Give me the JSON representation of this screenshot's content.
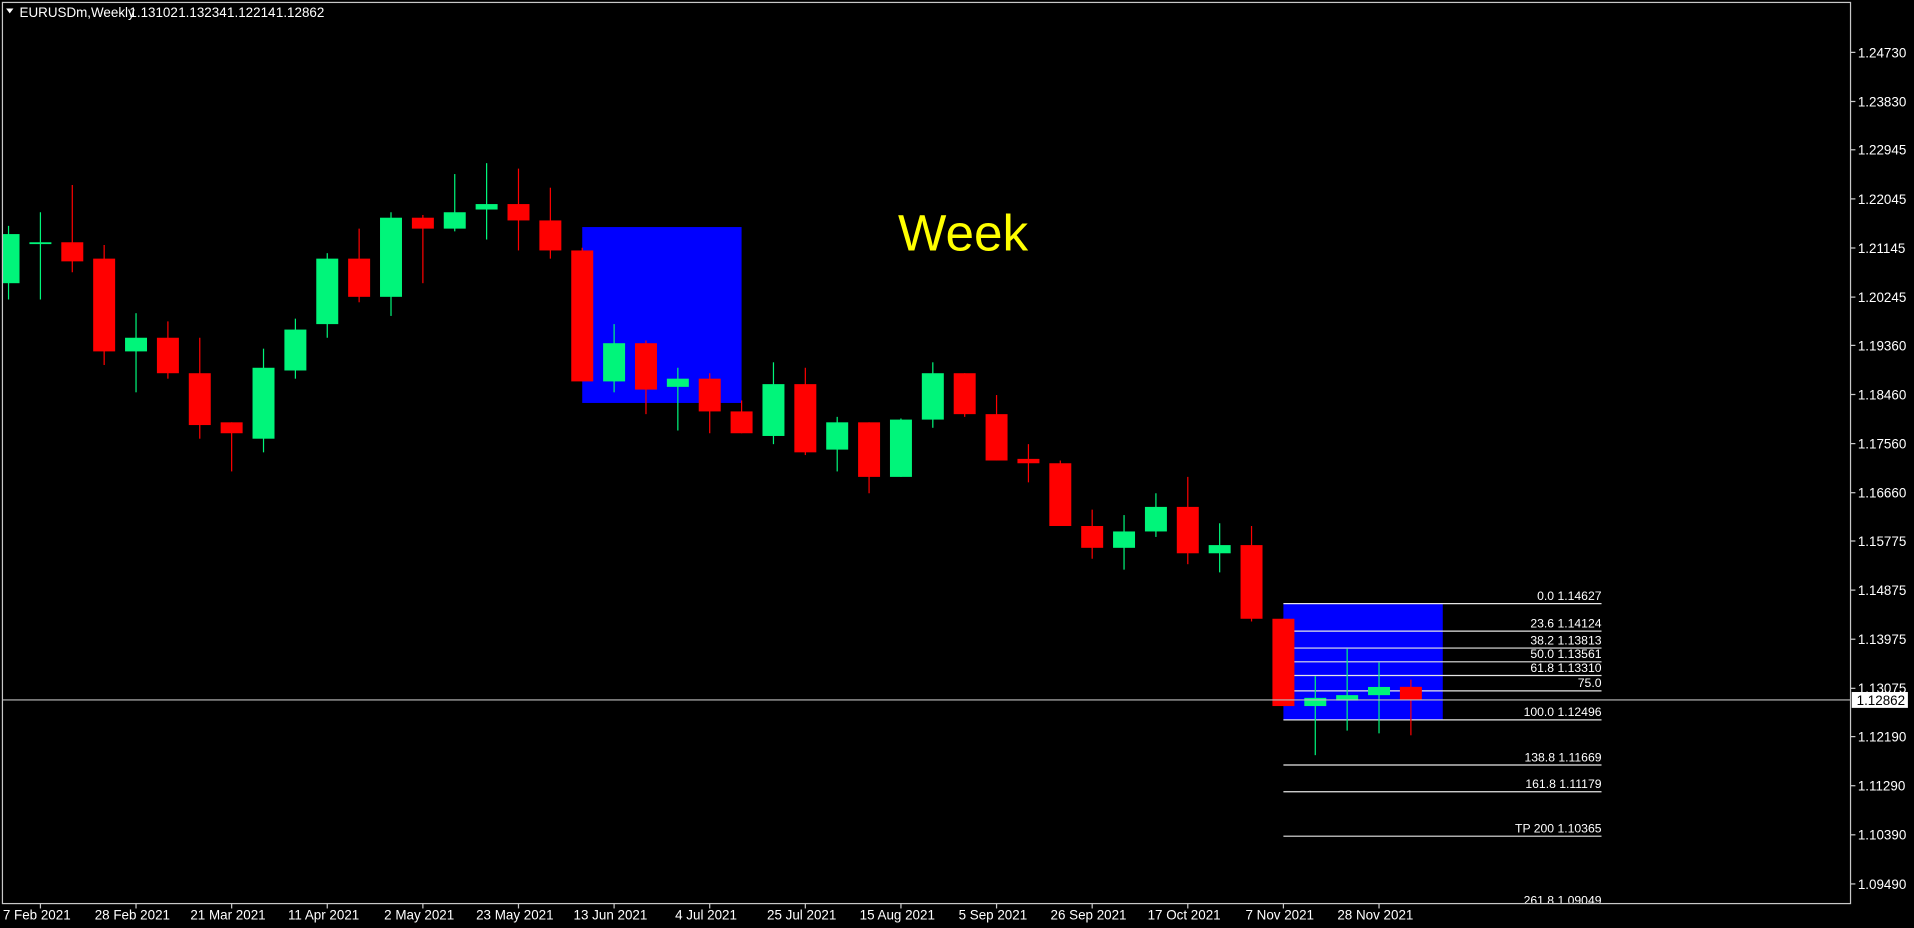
{
  "chart_data": {
    "type": "candlestick",
    "symbol": "EURUSDm,Weekly",
    "annotation": "Week",
    "categories": [
      null,
      "7 Feb 2021",
      null,
      null,
      "28 Feb 2021",
      null,
      null,
      "21 Mar 2021",
      null,
      null,
      "11 Apr 2021",
      null,
      null,
      "2 May 2021",
      null,
      null,
      "23 May 2021",
      null,
      null,
      "13 Jun 2021",
      null,
      null,
      "4 Jul 2021",
      null,
      null,
      "25 Jul 2021",
      null,
      null,
      "15 Aug 2021",
      null,
      null,
      "5 Sep 2021",
      null,
      null,
      "26 Sep 2021",
      null,
      null,
      "17 Oct 2021",
      null,
      null,
      "7 Nov 2021",
      null,
      null,
      "28 Nov 2021",
      null
    ],
    "open": [
      1.205,
      1.2125,
      1.2125,
      1.2095,
      1.1925,
      1.195,
      1.1885,
      1.1795,
      1.1765,
      1.189,
      1.1975,
      1.2095,
      1.2025,
      1.217,
      1.215,
      1.2185,
      1.2195,
      1.2165,
      1.211,
      1.187,
      1.194,
      1.186,
      1.1875,
      1.1815,
      1.177,
      1.1865,
      1.1745,
      1.1795,
      1.1695,
      1.18,
      1.1885,
      1.181,
      1.1728,
      1.172,
      1.1605,
      1.1565,
      1.1595,
      1.164,
      1.1555,
      1.157,
      1.1435,
      1.1275,
      1.1285,
      1.1295,
      1.13102
    ],
    "high": [
      1.2155,
      1.218,
      1.223,
      1.212,
      1.1995,
      1.198,
      1.195,
      1.1795,
      1.193,
      1.1985,
      1.2105,
      1.215,
      1.218,
      1.2175,
      1.225,
      1.227,
      1.226,
      1.2225,
      1.2115,
      1.1975,
      1.1945,
      1.1895,
      1.1885,
      1.1835,
      1.1905,
      1.1895,
      1.1805,
      1.1795,
      1.1802,
      1.1905,
      1.1885,
      1.1845,
      1.1755,
      1.1725,
      1.1635,
      1.1625,
      1.1665,
      1.1695,
      1.161,
      1.1605,
      1.1435,
      1.133,
      1.138,
      1.1355,
      1.13234
    ],
    "low": [
      1.202,
      1.202,
      1.207,
      1.19,
      1.185,
      1.1875,
      1.1765,
      1.1705,
      1.174,
      1.1875,
      1.195,
      1.2015,
      1.199,
      1.205,
      1.2145,
      1.213,
      1.211,
      1.2095,
      1.187,
      1.185,
      1.181,
      1.178,
      1.1775,
      1.1775,
      1.1755,
      1.1735,
      1.1705,
      1.1665,
      1.1695,
      1.1785,
      1.1805,
      1.1725,
      1.1685,
      1.1605,
      1.1545,
      1.1525,
      1.1585,
      1.1535,
      1.152,
      1.143,
      1.1275,
      1.1185,
      1.123,
      1.1225,
      1.12214
    ],
    "close": [
      1.214,
      1.2125,
      1.209,
      1.1925,
      1.195,
      1.1885,
      1.179,
      1.1775,
      1.1895,
      1.1965,
      1.2095,
      1.2025,
      1.217,
      1.215,
      1.218,
      1.2195,
      1.2165,
      1.211,
      1.187,
      1.194,
      1.1855,
      1.1875,
      1.1815,
      1.1775,
      1.1865,
      1.174,
      1.1795,
      1.1695,
      1.18,
      1.1885,
      1.181,
      1.1725,
      1.172,
      1.1605,
      1.1565,
      1.1595,
      1.164,
      1.1555,
      1.157,
      1.1435,
      1.1275,
      1.129,
      1.1295,
      1.131,
      1.12862
    ],
    "up_color": "#00f57a",
    "down_color": "#ff0000",
    "ylim": [
      1.0913,
      1.2569
    ],
    "yticks": [
      {
        "value": 1.2473,
        "label": "1.24730"
      },
      {
        "value": 1.2383,
        "label": "1.23830"
      },
      1.22945,
      1.22045,
      1.21145,
      1.20245,
      {
        "value": 1.1936,
        "label": "1.19360"
      },
      {
        "value": 1.1846,
        "label": "1.18460"
      },
      {
        "value": 1.1756,
        "label": "1.17560"
      },
      {
        "value": 1.1666,
        "label": "1.16660"
      },
      1.15775,
      1.14875,
      1.13975,
      1.13075,
      {
        "value": 1.1219,
        "label": "1.12190"
      },
      {
        "value": 1.1129,
        "label": "1.11290"
      },
      {
        "value": 1.1039,
        "label": "1.10390"
      },
      {
        "value": 1.0949,
        "label": "1.09490"
      }
    ],
    "zones": [
      {
        "start": 18,
        "end": 23,
        "top": 1.21529,
        "bottom": 1.18305,
        "color": "#0000ff"
      },
      {
        "start": 40,
        "end": 45,
        "top": 1.14627,
        "bottom": 1.12496,
        "color": "#0000ff"
      }
    ],
    "fib_start": 40,
    "fib_levels": [
      {
        "label": "0.0 1.14627",
        "value": 1.14627
      },
      {
        "label": "23.6 1.14124",
        "value": 1.14124
      },
      {
        "label": "38.2 1.13813",
        "value": 1.13813
      },
      {
        "label": "50.0 1.13561",
        "value": 1.13561
      },
      {
        "label": "61.8 1.13310",
        "value": 1.1331
      },
      {
        "label": "75.0",
        "value": 1.13029
      },
      {
        "label": "100.0 1.12496",
        "value": 1.12496
      },
      {
        "label": "138.8 1.11669",
        "value": 1.11669
      },
      {
        "label": "161.8 1.11179",
        "value": 1.11179
      },
      {
        "label": "TP 200 1.10365",
        "value": 1.10365
      },
      {
        "label": "261.8 1.09049",
        "value": 1.09049
      }
    ]
  }
}
